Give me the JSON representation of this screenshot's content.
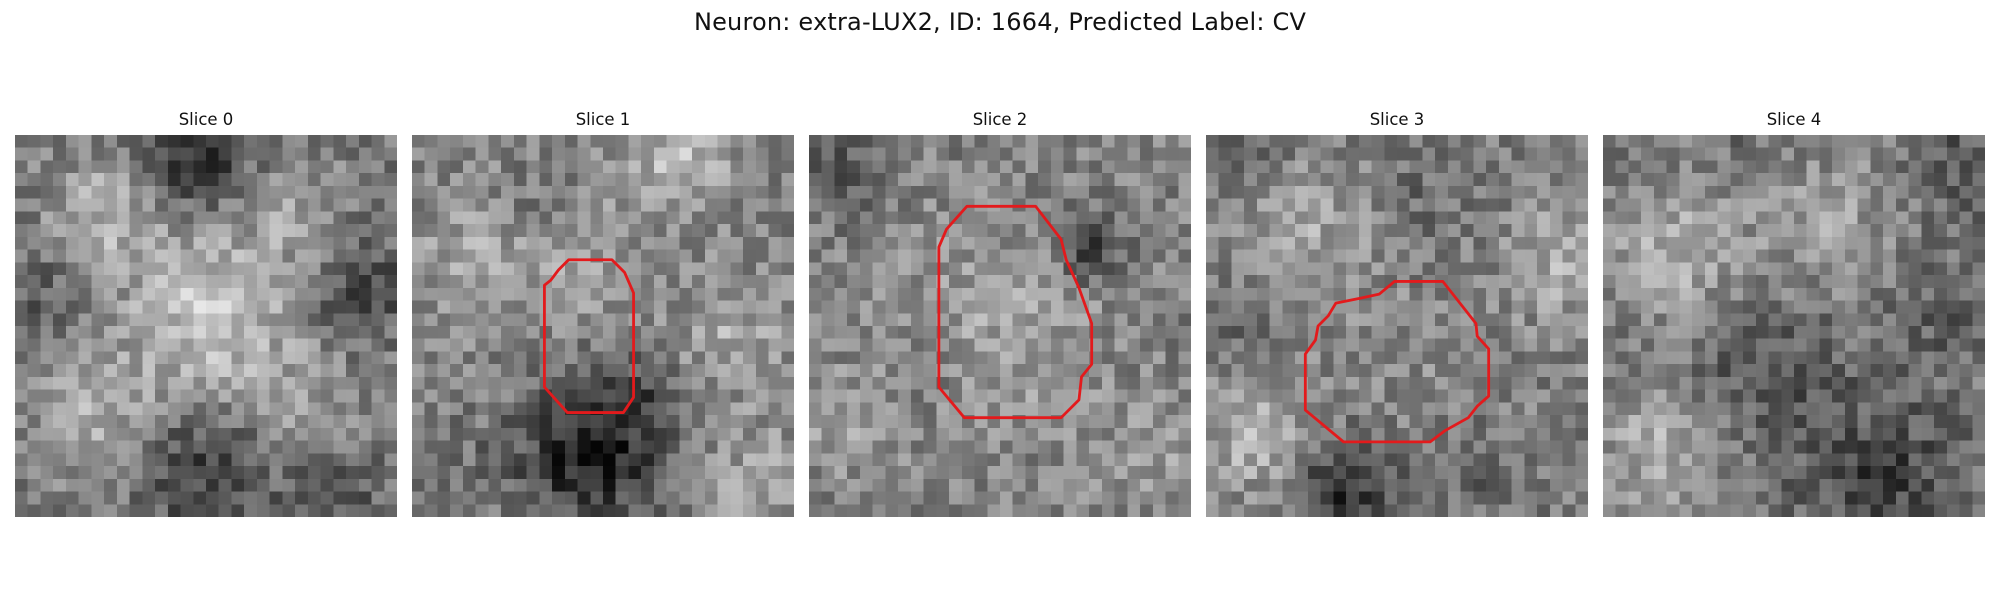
{
  "figure": {
    "title": "Neuron: extra-LUX2, ID: 1664, Predicted Label: CV"
  },
  "panels": [
    {
      "title": "Slice 0",
      "has_outline": false
    },
    {
      "title": "Slice 1",
      "has_outline": true
    },
    {
      "title": "Slice 2",
      "has_outline": true
    },
    {
      "title": "Slice 3",
      "has_outline": true
    },
    {
      "title": "Slice 4",
      "has_outline": false
    }
  ],
  "style": {
    "outline_color": "#e31a1c",
    "colormap": "grayscale"
  }
}
